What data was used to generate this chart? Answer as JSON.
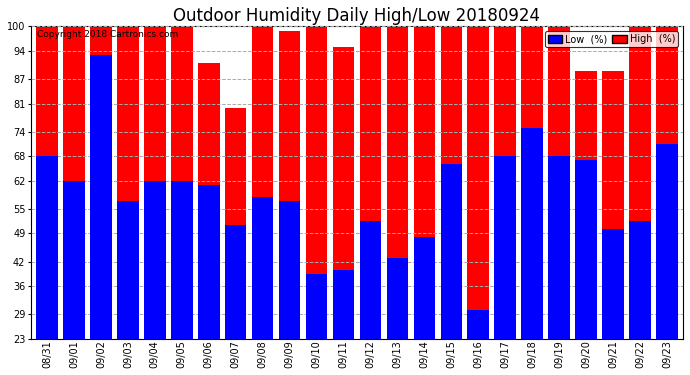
{
  "title": "Outdoor Humidity Daily High/Low 20180924",
  "copyright": "Copyright 2018 Cartronics.com",
  "labels": [
    "08/31",
    "09/01",
    "09/02",
    "09/03",
    "09/04",
    "09/05",
    "09/06",
    "09/07",
    "09/08",
    "09/09",
    "09/10",
    "09/11",
    "09/12",
    "09/13",
    "09/14",
    "09/15",
    "09/16",
    "09/17",
    "09/18",
    "09/19",
    "09/20",
    "09/21",
    "09/22",
    "09/23"
  ],
  "high": [
    100,
    100,
    100,
    100,
    100,
    100,
    91,
    80,
    100,
    99,
    100,
    95,
    100,
    100,
    100,
    100,
    100,
    100,
    100,
    100,
    89,
    89,
    100,
    100
  ],
  "low": [
    68,
    62,
    93,
    57,
    62,
    62,
    61,
    51,
    58,
    57,
    39,
    40,
    52,
    43,
    48,
    66,
    30,
    68,
    75,
    68,
    67,
    50,
    52,
    71
  ],
  "high_color": "#ff0000",
  "low_color": "#0000ff",
  "bg_color": "#ffffff",
  "grid_color": "#aaaaaa",
  "ylim_min": 23,
  "ylim_max": 100,
  "yticks": [
    23,
    29,
    36,
    42,
    49,
    55,
    62,
    68,
    74,
    81,
    87,
    94,
    100
  ],
  "bar_width": 0.8,
  "title_fontsize": 12,
  "tick_fontsize": 7,
  "legend_low_label": "Low  (%)",
  "legend_high_label": "High  (%)"
}
